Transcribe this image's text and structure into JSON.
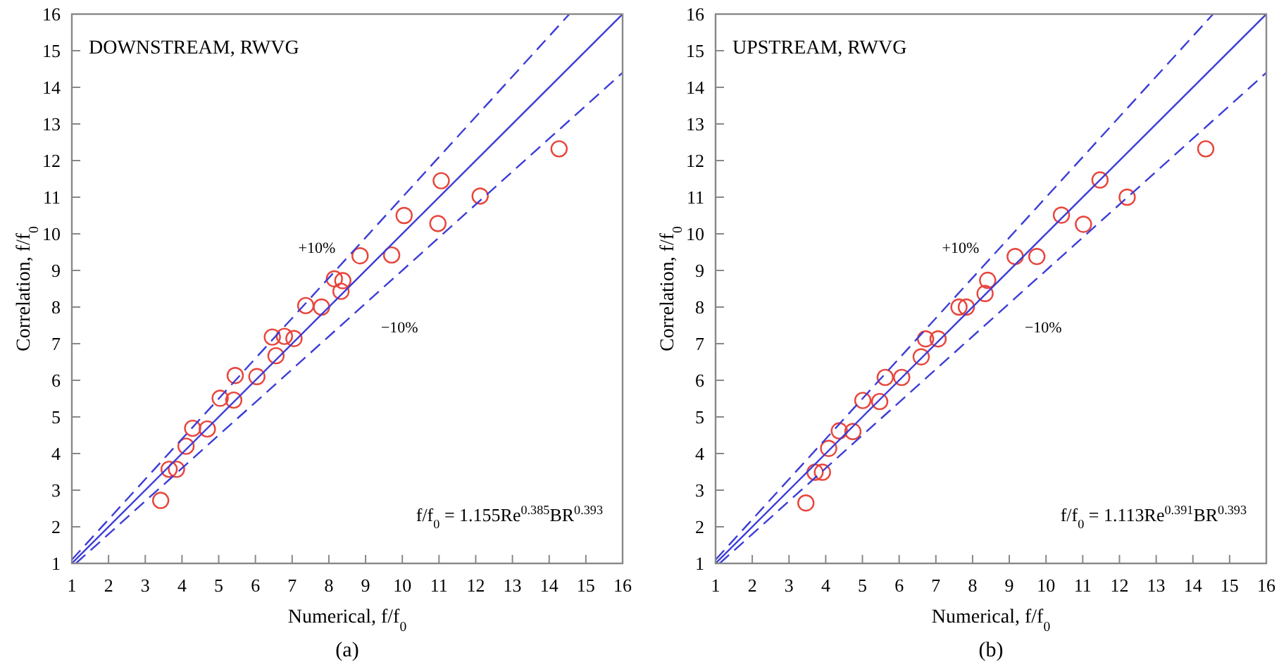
{
  "chart_data": [
    {
      "type": "scatter",
      "title": "DOWNSTREAM, RWVG",
      "xlabel": "Numerical, f/f$_{0}$",
      "ylabel": "Correlation, f/f$_{0}$",
      "xlim": [
        1,
        16
      ],
      "ylim": [
        1,
        16
      ],
      "xticks": [
        1,
        2,
        3,
        4,
        5,
        6,
        7,
        8,
        9,
        10,
        11,
        12,
        13,
        14,
        15,
        16
      ],
      "yticks": [
        1,
        2,
        3,
        4,
        5,
        6,
        7,
        8,
        9,
        10,
        11,
        12,
        13,
        14,
        15,
        16
      ],
      "grid": false,
      "annotations": [
        "+10%",
        "−10%",
        "f/f$_{0}$ = 1.155Re$^{0.385}$BR$^{0.393}$",
        "(a)"
      ],
      "series": [
        {
          "color": "#e8453c",
          "marker": "circle",
          "x": [
            3.42,
            3.65,
            3.85,
            4.11,
            4.29,
            4.69,
            5.04,
            5.41,
            5.45,
            6.04,
            6.46,
            6.56,
            6.79,
            7.05,
            7.37,
            7.8,
            8.15,
            8.38,
            8.33,
            8.85,
            9.71,
            10.05,
            10.97,
            11.06,
            12.12,
            14.27
          ],
          "values": [
            2.72,
            3.57,
            3.57,
            4.2,
            4.69,
            4.67,
            5.51,
            5.46,
            6.13,
            6.1,
            7.18,
            6.67,
            7.2,
            7.14,
            8.04,
            8.0,
            8.77,
            8.72,
            8.43,
            9.4,
            9.42,
            10.5,
            10.28,
            11.45,
            11.03,
            12.32
          ]
        },
        {
          "type": "line",
          "color": "#3c3cd8",
          "line_style": "solid",
          "marker": "none",
          "x": [
            1,
            16
          ],
          "values": [
            1,
            16
          ]
        },
        {
          "type": "line",
          "color": "#3c3cd8",
          "line_style": "dashed",
          "marker": "none",
          "x": [
            1,
            14.55
          ],
          "values": [
            1.1,
            16
          ]
        },
        {
          "type": "line",
          "color": "#3c3cd8",
          "line_style": "dashed",
          "marker": "none",
          "x": [
            1.11,
            16
          ],
          "values": [
            1,
            14.4
          ]
        }
      ]
    },
    {
      "type": "scatter",
      "title": "UPSTREAM, RWVG",
      "xlabel": "Numerical, f/f$_{0}$",
      "ylabel": "Correlation, f/f$_{0}$",
      "xlim": [
        1,
        16
      ],
      "ylim": [
        1,
        16
      ],
      "xticks": [
        1,
        2,
        3,
        4,
        5,
        6,
        7,
        8,
        9,
        10,
        11,
        12,
        13,
        14,
        15,
        16
      ],
      "yticks": [
        1,
        2,
        3,
        4,
        5,
        6,
        7,
        8,
        9,
        10,
        11,
        12,
        13,
        14,
        15,
        16
      ],
      "grid": false,
      "annotations": [
        "+10%",
        "−10%",
        "f/f$_{0}$ = 1.113Re$^{0.391}$BR$^{0.393}$",
        "(b)"
      ],
      "series": [
        {
          "color": "#e8453c",
          "marker": "circle",
          "x": [
            3.46,
            3.71,
            3.91,
            4.08,
            4.37,
            4.74,
            5.01,
            5.47,
            5.62,
            6.07,
            6.6,
            6.72,
            7.06,
            7.63,
            7.83,
            8.34,
            8.41,
            9.16,
            9.75,
            10.42,
            11.02,
            11.47,
            12.21,
            14.35
          ],
          "values": [
            2.65,
            3.49,
            3.49,
            4.14,
            4.62,
            4.6,
            5.45,
            5.42,
            6.08,
            6.08,
            6.64,
            7.13,
            7.13,
            8.0,
            8.0,
            8.37,
            8.73,
            9.38,
            9.38,
            10.51,
            10.26,
            11.47,
            11.0,
            12.32
          ]
        },
        {
          "type": "line",
          "color": "#3c3cd8",
          "line_style": "solid",
          "marker": "none",
          "x": [
            1,
            16
          ],
          "values": [
            1,
            16
          ]
        },
        {
          "type": "line",
          "color": "#3c3cd8",
          "line_style": "dashed",
          "marker": "none",
          "x": [
            1,
            14.55
          ],
          "values": [
            1.1,
            16
          ]
        },
        {
          "type": "line",
          "color": "#3c3cd8",
          "line_style": "dashed",
          "marker": "none",
          "x": [
            1.11,
            16
          ],
          "values": [
            1,
            14.4
          ]
        }
      ]
    }
  ]
}
